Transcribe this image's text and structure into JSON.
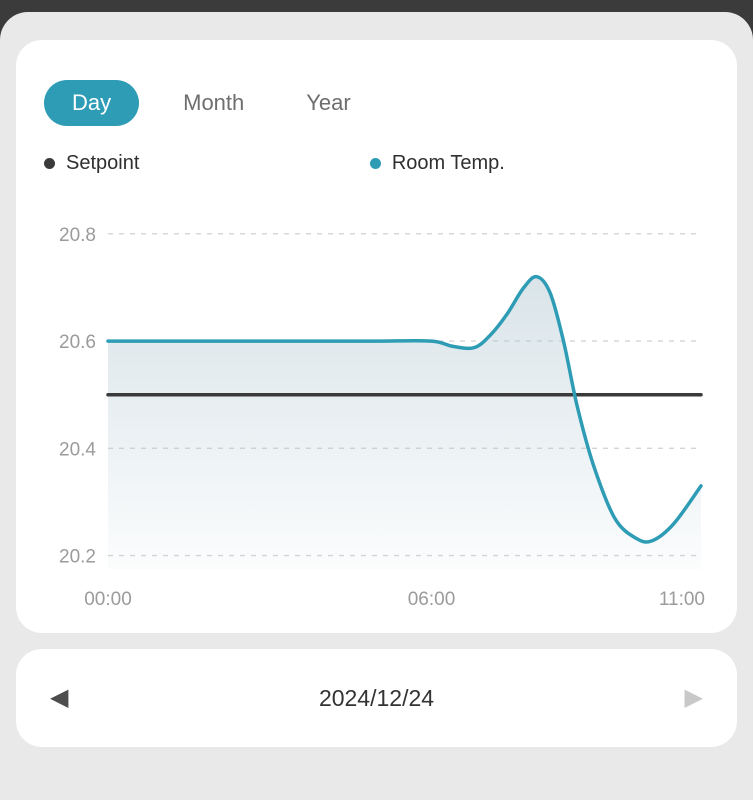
{
  "tabs": {
    "items": [
      {
        "label": "Day",
        "active": true
      },
      {
        "label": "Month",
        "active": false
      },
      {
        "label": "Year",
        "active": false
      }
    ]
  },
  "legend": {
    "items": [
      {
        "label": "Setpoint",
        "color": "#3a3a3a"
      },
      {
        "label": "Room Temp.",
        "color": "#2e9cb5"
      }
    ]
  },
  "date_nav": {
    "date": "2024/12/24",
    "prev_icon": "◀",
    "next_icon": "▶"
  },
  "colors": {
    "accent": "#2e9cb5",
    "setpoint_line": "#3a3a3a",
    "room_temp_line": "#2e9cb5",
    "area_fill": "#b3c9d3",
    "axis_text": "#9b9b9b",
    "grid_line": "#d4d4d4",
    "card_bg": "#ffffff",
    "page_bg": "#e9e9e9",
    "top_bar": "#3b3b3b"
  },
  "chart_data": {
    "type": "line",
    "title": "",
    "xlabel": "",
    "ylabel": "",
    "x_unit": "hour",
    "xticks": [
      {
        "x": 0,
        "label": "00:00"
      },
      {
        "x": 6,
        "label": "06:00"
      },
      {
        "x": 11,
        "label": "11:00"
      }
    ],
    "yticks": [
      20.2,
      20.4,
      20.6,
      20.8
    ],
    "xlim": [
      0,
      11
    ],
    "ylim": [
      20.175,
      20.85
    ],
    "grid": "horizontal-dashed",
    "legend_position": "top",
    "series": [
      {
        "name": "Setpoint",
        "color": "#3a3a3a",
        "area_fill": false,
        "points": [
          [
            0,
            20.5
          ],
          [
            11,
            20.5
          ]
        ]
      },
      {
        "name": "Room Temp.",
        "color": "#2e9cb5",
        "area_fill": true,
        "points": [
          [
            0,
            20.6
          ],
          [
            1,
            20.6
          ],
          [
            2,
            20.6
          ],
          [
            3,
            20.6
          ],
          [
            4,
            20.6
          ],
          [
            5,
            20.6
          ],
          [
            6,
            20.6
          ],
          [
            6.4,
            20.59
          ],
          [
            6.8,
            20.588
          ],
          [
            7.1,
            20.612
          ],
          [
            7.4,
            20.65
          ],
          [
            7.7,
            20.698
          ],
          [
            7.95,
            20.72
          ],
          [
            8.2,
            20.69
          ],
          [
            8.45,
            20.6
          ],
          [
            8.7,
            20.48
          ],
          [
            9,
            20.37
          ],
          [
            9.4,
            20.27
          ],
          [
            9.8,
            20.232
          ],
          [
            10.1,
            20.228
          ],
          [
            10.5,
            20.26
          ],
          [
            11,
            20.33
          ]
        ]
      }
    ]
  }
}
